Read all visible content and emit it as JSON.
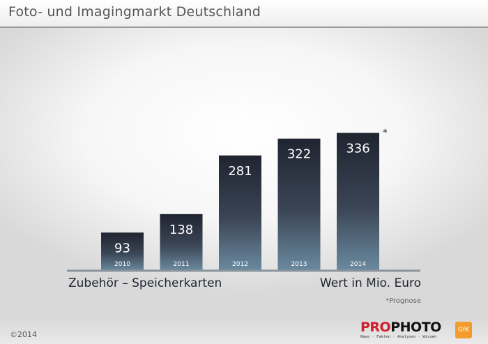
{
  "header": {
    "title": "Foto- und Imagingmarkt Deutschland"
  },
  "chart_data": {
    "type": "bar",
    "categories": [
      "2010",
      "2011",
      "2012",
      "2013",
      "2014"
    ],
    "values": [
      93,
      138,
      281,
      322,
      336
    ],
    "value_labels": [
      "93",
      "138",
      "281",
      "322",
      "336"
    ],
    "forecast_marker": "*",
    "forecast_category": "2014",
    "xlabel": "Zubehör – Speicherkarten",
    "ylabel": "Wert in Mio. Euro",
    "footnote": "*Prognose",
    "grid": false,
    "legend": "none",
    "bar_color_top": "#1f2430",
    "bar_color_bottom": "#6b8aa0"
  },
  "footer": {
    "copyright": "©2014",
    "logo_pro": "PRO",
    "logo_photo": "PHOTO",
    "logo_tagline": "News · Fakten · Analysen · Wissen",
    "partner_logo": "GfK"
  },
  "colors": {
    "baseline": "#8a949c",
    "brand_red": "#d0202c",
    "gfk_orange": "#f39c2b"
  }
}
